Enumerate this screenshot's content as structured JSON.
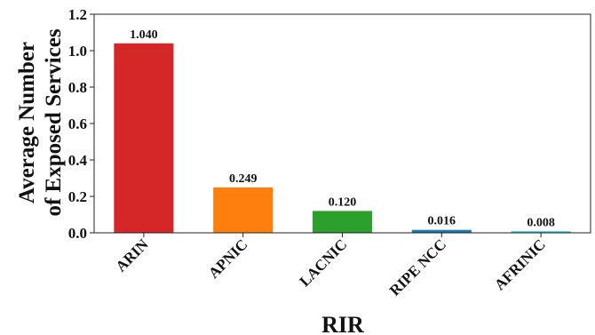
{
  "chart_data": {
    "type": "bar",
    "title": "",
    "xlabel": "RIR",
    "ylabel_lines": [
      "Average Number",
      "of Exposed Services"
    ],
    "categories": [
      "ARIN",
      "APNIC",
      "LACNIC",
      "RIPE NCC",
      "AFRINIC"
    ],
    "values": [
      1.04,
      0.249,
      0.12,
      0.016,
      0.008
    ],
    "value_labels": [
      "1.040",
      "0.249",
      "0.120",
      "0.016",
      "0.008"
    ],
    "colors": [
      "#d62728",
      "#ff7f0e",
      "#2ca02c",
      "#1f77b4",
      "#17becf"
    ],
    "ylim": [
      0,
      1.2
    ],
    "yticks": [
      "0.0",
      "0.2",
      "0.4",
      "0.6",
      "0.8",
      "1.0",
      "1.2"
    ],
    "grid": false,
    "legend": "none"
  }
}
